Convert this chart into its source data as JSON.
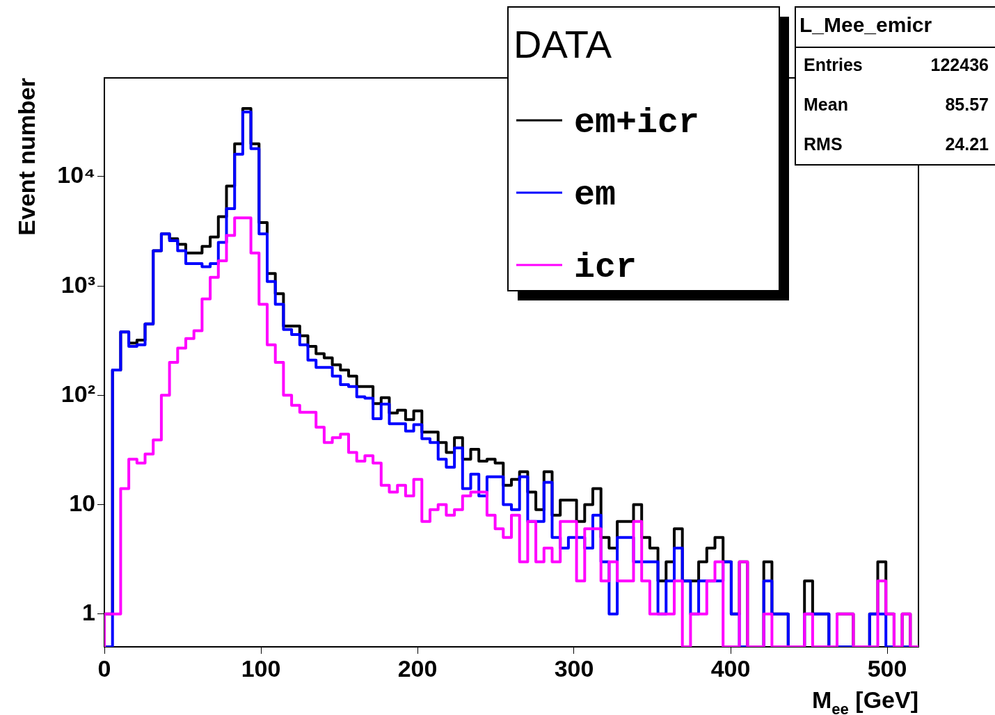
{
  "chart_data": {
    "type": "histogram",
    "xlabel": "M$_{ee}$ [GeV]",
    "ylabel": "Event number",
    "legend_title": "DATA",
    "annotations": [
      "L_Mee_emicr",
      "Entries 122436",
      "Mean 85.57",
      "RMS 24.21"
    ],
    "bins": [
      0,
      5.2,
      10.4,
      15.6,
      20.8,
      26,
      31.2,
      36.4,
      41.6,
      46.8,
      52,
      57.2,
      62.4,
      67.6,
      72.8,
      78,
      83.2,
      88.4,
      93.6,
      98.8,
      104,
      109.2,
      114.4,
      119.6,
      124.8,
      130,
      135.2,
      140.4,
      145.6,
      150.8,
      156,
      161.2,
      166.4,
      171.6,
      176.8,
      182,
      187.2,
      192.4,
      197.6,
      202.8,
      208,
      213.2,
      218.4,
      223.6,
      228.8,
      234,
      239.2,
      244.4,
      249.6,
      254.8,
      260,
      265.2,
      270.4,
      275.6,
      280.8,
      286,
      291.2,
      296.4,
      301.6,
      306.8,
      312,
      317.2,
      322.4,
      327.6,
      332.8,
      338,
      343.2,
      348.4,
      353.6,
      358.8,
      364,
      369.2,
      374.4,
      379.6,
      384.8,
      390,
      395.2,
      400.4,
      405.6,
      410.8,
      416,
      421.2,
      426.4,
      431.6,
      436.8,
      442,
      447.2,
      452.4,
      457.6,
      462.8,
      468,
      473.2,
      478.4,
      483.6,
      488.8,
      494,
      499.2,
      504.4,
      509.6,
      514.8,
      520
    ],
    "series": [
      {
        "name": "em+icr",
        "color": "#000000",
        "values": [
          1,
          170,
          380,
          300,
          320,
          450,
          2100,
          3000,
          2700,
          2400,
          2000,
          2000,
          2300,
          2800,
          4300,
          8200,
          20000,
          42000,
          20000,
          3800,
          1300,
          850,
          430,
          430,
          350,
          280,
          240,
          220,
          190,
          170,
          150,
          120,
          120,
          84,
          95,
          69,
          73,
          60,
          72,
          46,
          46,
          37,
          30,
          41,
          26,
          32,
          25,
          26,
          24,
          15,
          17,
          20,
          13,
          9,
          20,
          8,
          11,
          11,
          7,
          10,
          14,
          5,
          4,
          7,
          7,
          10,
          5,
          4,
          2,
          3,
          6,
          2,
          2,
          3,
          4,
          5,
          3,
          1,
          3,
          null,
          null,
          3,
          1,
          1,
          null,
          null,
          2,
          1,
          1,
          null,
          1,
          1,
          null,
          null,
          1,
          3,
          1,
          null,
          1,
          null
        ]
      },
      {
        "name": "em",
        "color": "#0000ff",
        "values": [
          null,
          170,
          380,
          280,
          290,
          450,
          2100,
          3000,
          2600,
          2100,
          1600,
          1600,
          1500,
          1600,
          2500,
          5100,
          16000,
          39000,
          18000,
          3000,
          1100,
          680,
          400,
          360,
          290,
          210,
          180,
          180,
          150,
          125,
          120,
          97,
          94,
          61,
          83,
          55,
          55,
          47,
          54,
          40,
          37,
          26,
          22,
          33,
          14,
          19,
          12,
          18,
          18,
          10,
          9,
          18,
          7,
          7,
          16,
          5,
          4,
          5,
          5,
          4,
          8,
          3,
          1,
          5,
          5,
          3,
          3,
          3,
          1,
          2,
          4,
          2,
          1,
          2,
          2,
          2,
          3,
          1,
          null,
          null,
          null,
          2,
          1,
          1,
          null,
          null,
          1,
          1,
          1,
          null,
          null,
          null,
          null,
          null,
          1,
          1,
          null,
          null,
          null,
          null
        ]
      },
      {
        "name": "icr",
        "color": "#ff00ff",
        "values": [
          1,
          1,
          14,
          26,
          24,
          29,
          39,
          100,
          200,
          270,
          330,
          390,
          760,
          1200,
          1700,
          2900,
          4200,
          4200,
          2000,
          680,
          290,
          200,
          100,
          81,
          70,
          70,
          51,
          37,
          41,
          44,
          30,
          25,
          28,
          24,
          15,
          13,
          15,
          12,
          17,
          7,
          9,
          10,
          8,
          9,
          12,
          13,
          13,
          8,
          6,
          5,
          8,
          3,
          7,
          3,
          4,
          3,
          7,
          7,
          2,
          6,
          6,
          2,
          3,
          2,
          2,
          7,
          2,
          1,
          1,
          1,
          2,
          null,
          1,
          1,
          2,
          3,
          null,
          null,
          3,
          null,
          null,
          1,
          null,
          null,
          null,
          null,
          1,
          null,
          null,
          null,
          1,
          1,
          null,
          null,
          null,
          2,
          1,
          null,
          1,
          null
        ]
      }
    ],
    "xlim": [
      0,
      520
    ],
    "xticks": [
      0,
      100,
      200,
      300,
      400,
      500
    ],
    "ylim": [
      0.5,
      80000
    ],
    "yticks": [
      1,
      10,
      {
        "value": 100,
        "label": "10²"
      },
      {
        "value": 1000,
        "label": "10³"
      },
      {
        "value": 10000,
        "label": "10⁴"
      }
    ],
    "log": "y",
    "legend": "top right"
  }
}
